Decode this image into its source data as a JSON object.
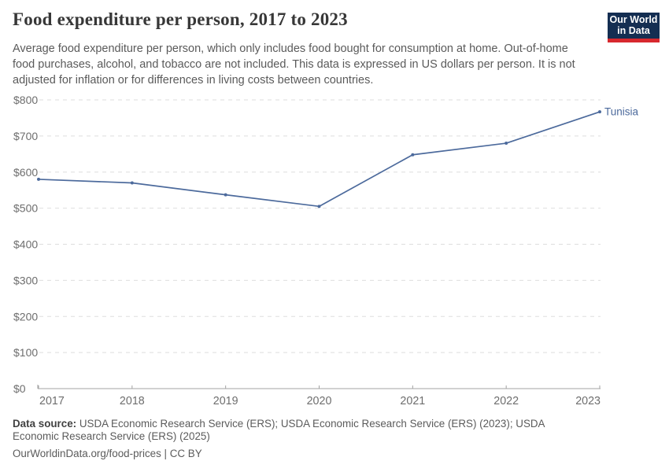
{
  "header": {
    "title": "Food expenditure per person, 2017 to 2023",
    "subtitle": "Average food expenditure per person, which only includes food bought for consumption at home. Out-of-home food purchases, alcohol, and tobacco are not included. This data is expressed in US dollars per person. It is not adjusted for inflation or for differences in living costs between countries.",
    "logo": {
      "line1": "Our World",
      "line2": "in Data",
      "bg_color": "#142e52",
      "stripe_color": "#d7282e"
    }
  },
  "chart_data": {
    "type": "line",
    "title": "Food expenditure per person, 2017 to 2023",
    "x": [
      2017,
      2018,
      2019,
      2020,
      2021,
      2022,
      2023
    ],
    "series": [
      {
        "name": "Tunisia",
        "color": "#4c6a9c",
        "values": [
          580,
          570,
          537,
          505,
          648,
          680,
          767
        ]
      }
    ],
    "xlabel": "",
    "ylabel": "",
    "ylim": [
      0,
      800
    ],
    "ytick_step": 100,
    "ytick_prefix": "$",
    "grid": "horizontal-dashed",
    "legend": "end-of-line-label"
  },
  "footer": {
    "source_label": "Data source:",
    "sources": "USDA Economic Research Service (ERS); USDA Economic Research Service (ERS) (2023); USDA Economic Research Service (ERS) (2025)",
    "attribution": "OurWorldinData.org/food-prices | CC BY"
  }
}
